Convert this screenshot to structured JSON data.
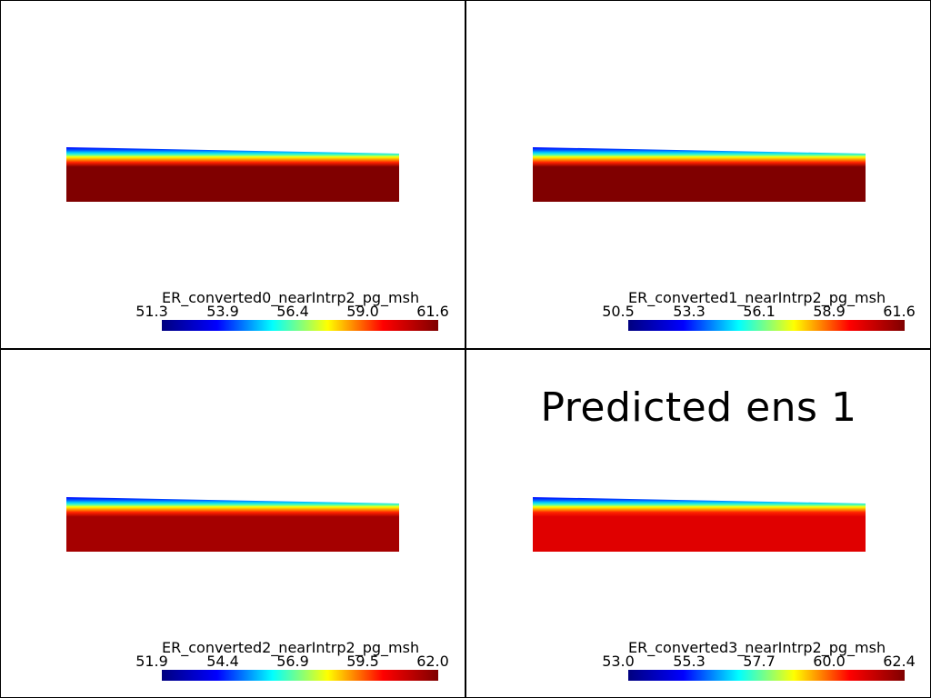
{
  "viewports": [
    {
      "title": "",
      "scalar_name": "ER_converted0_nearIntrp2_pg_msh",
      "ticks": [
        "51.3",
        "53.9",
        "56.4",
        "59.0",
        "61.6"
      ],
      "body_color": "#800000"
    },
    {
      "title": "",
      "scalar_name": "ER_converted1_nearIntrp2_pg_msh",
      "ticks": [
        "50.5",
        "53.3",
        "56.1",
        "58.9",
        "61.6"
      ],
      "body_color": "#800000"
    },
    {
      "title": "",
      "scalar_name": "ER_converted2_nearIntrp2_pg_msh",
      "ticks": [
        "51.9",
        "54.4",
        "56.9",
        "59.5",
        "62.0"
      ],
      "body_color": "#a50000"
    },
    {
      "title": "Predicted ens 1",
      "scalar_name": "ER_converted3_nearIntrp2_pg_msh",
      "ticks": [
        "53.0",
        "55.3",
        "57.7",
        "60.0",
        "62.4"
      ],
      "body_color": "#e00000"
    }
  ],
  "colormap": [
    "#00007f",
    "#0000ff",
    "#00ffff",
    "#ffff00",
    "#ff0000",
    "#7f0000"
  ]
}
